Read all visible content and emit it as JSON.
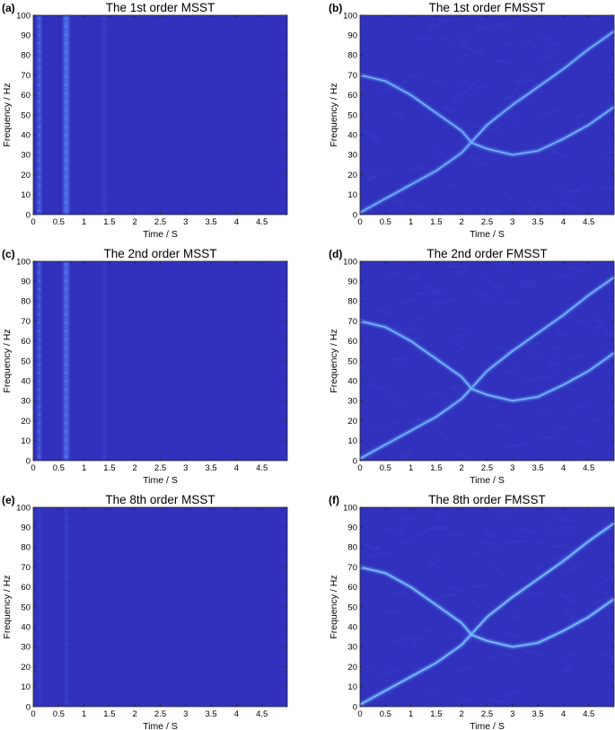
{
  "chart_data": [
    {
      "panel_label": "(a)",
      "title": "The 1st order MSST",
      "type": "heatmap",
      "xlabel": "Time / S",
      "ylabel": "Frequency / Hz",
      "xlim": [
        0,
        5
      ],
      "ylim": [
        0,
        100
      ],
      "xticks": [
        "0",
        "0.5",
        "1",
        "1.5",
        "2",
        "2.5",
        "3",
        "3.5",
        "4",
        "4.5"
      ],
      "yticks": [
        "0",
        "10",
        "20",
        "30",
        "40",
        "50",
        "60",
        "70",
        "80",
        "90",
        "100"
      ],
      "method": "MSST",
      "order": 1,
      "background_color": "#3131bd",
      "ridges": [],
      "vertical_bands": [
        {
          "t": 0.12,
          "width": 0.05,
          "strength": 0.75
        },
        {
          "t": 0.65,
          "width": 0.08,
          "strength": 0.9
        },
        {
          "t": 1.4,
          "width": 0.04,
          "strength": 0.25
        }
      ]
    },
    {
      "panel_label": "(b)",
      "title": "The 1st order FMSST",
      "type": "heatmap",
      "xlabel": "Time / S",
      "ylabel": "Frequency / Hz",
      "xlim": [
        0,
        5
      ],
      "ylim": [
        0,
        100
      ],
      "xticks": [
        "0",
        "0.5",
        "1",
        "1.5",
        "2",
        "2.5",
        "3",
        "3.5",
        "4",
        "4.5"
      ],
      "yticks": [
        "0",
        "10",
        "20",
        "30",
        "40",
        "50",
        "60",
        "70",
        "80",
        "90",
        "100"
      ],
      "method": "FMSST",
      "order": 1,
      "background_color": "#3131bd",
      "ridges": [
        {
          "t": [
            0,
            0.5,
            1,
            1.5,
            2,
            2.5,
            3,
            3.5,
            4,
            4.5,
            5
          ],
          "f": [
            1,
            8,
            15,
            22,
            31,
            45,
            55,
            64,
            73,
            83,
            92
          ],
          "strength": 0.8
        },
        {
          "t": [
            0,
            0.5,
            1,
            1.5,
            2,
            2.2,
            2.5,
            3,
            3.5,
            4,
            4.5,
            5
          ],
          "f": [
            70,
            67,
            60,
            51,
            42,
            36,
            33,
            30,
            32,
            38,
            45,
            54
          ],
          "strength": 0.8
        }
      ],
      "vertical_bands": []
    },
    {
      "panel_label": "(c)",
      "title": "The 2nd order MSST",
      "type": "heatmap",
      "xlabel": "Time / S",
      "ylabel": "Frequency / Hz",
      "xlim": [
        0,
        5
      ],
      "ylim": [
        0,
        100
      ],
      "xticks": [
        "0",
        "0.5",
        "1",
        "1.5",
        "2",
        "2.5",
        "3",
        "3.5",
        "4",
        "4.5"
      ],
      "yticks": [
        "0",
        "10",
        "20",
        "30",
        "40",
        "50",
        "60",
        "70",
        "80",
        "90",
        "100"
      ],
      "method": "MSST",
      "order": 2,
      "background_color": "#3131bd",
      "ridges": [],
      "vertical_bands": [
        {
          "t": 0.12,
          "width": 0.045,
          "strength": 0.7
        },
        {
          "t": 0.65,
          "width": 0.07,
          "strength": 0.85
        },
        {
          "t": 1.4,
          "width": 0.035,
          "strength": 0.22
        }
      ]
    },
    {
      "panel_label": "(d)",
      "title": "The 2nd order FMSST",
      "type": "heatmap",
      "xlabel": "Time / S",
      "ylabel": "Frequency / Hz",
      "xlim": [
        0,
        5
      ],
      "ylim": [
        0,
        100
      ],
      "xticks": [
        "0",
        "0.5",
        "1",
        "1.5",
        "2",
        "2.5",
        "3",
        "3.5",
        "4",
        "4.5"
      ],
      "yticks": [
        "0",
        "10",
        "20",
        "30",
        "40",
        "50",
        "60",
        "70",
        "80",
        "90",
        "100"
      ],
      "method": "FMSST",
      "order": 2,
      "background_color": "#3131bd",
      "ridges": [
        {
          "t": [
            0,
            0.5,
            1,
            1.5,
            2,
            2.5,
            3,
            3.5,
            4,
            4.5,
            5
          ],
          "f": [
            1,
            8,
            15,
            22,
            31,
            45,
            55,
            64,
            73,
            83,
            92
          ],
          "strength": 0.85
        },
        {
          "t": [
            0,
            0.5,
            1,
            1.5,
            2,
            2.2,
            2.5,
            3,
            3.5,
            4,
            4.5,
            5
          ],
          "f": [
            70,
            67,
            60,
            51,
            42,
            36,
            33,
            30,
            32,
            38,
            45,
            54
          ],
          "strength": 0.85
        }
      ],
      "vertical_bands": []
    },
    {
      "panel_label": "(e)",
      "title": "The 8th order MSST",
      "type": "heatmap",
      "xlabel": "Time / S",
      "ylabel": "Frequency / Hz",
      "xlim": [
        0,
        5
      ],
      "ylim": [
        0,
        100
      ],
      "xticks": [
        "0",
        "0.5",
        "1",
        "1.5",
        "2",
        "2.5",
        "3",
        "3.5",
        "4",
        "4.5"
      ],
      "yticks": [
        "0",
        "10",
        "20",
        "30",
        "40",
        "50",
        "60",
        "70",
        "80",
        "90",
        "100"
      ],
      "method": "MSST",
      "order": 8,
      "background_color": "#3131bd",
      "ridges": [],
      "vertical_bands": [
        {
          "t": 0.12,
          "width": 0.03,
          "strength": 0.18
        },
        {
          "t": 0.65,
          "width": 0.04,
          "strength": 0.25
        }
      ]
    },
    {
      "panel_label": "(f)",
      "title": "The 8th order FMSST",
      "type": "heatmap",
      "xlabel": "Time / S",
      "ylabel": "Frequency / Hz",
      "xlim": [
        0,
        5
      ],
      "ylim": [
        0,
        100
      ],
      "xticks": [
        "0",
        "0.5",
        "1",
        "1.5",
        "2",
        "2.5",
        "3",
        "3.5",
        "4",
        "4.5"
      ],
      "yticks": [
        "0",
        "10",
        "20",
        "30",
        "40",
        "50",
        "60",
        "70",
        "80",
        "90",
        "100"
      ],
      "method": "FMSST",
      "order": 8,
      "background_color": "#3131bd",
      "ridges": [
        {
          "t": [
            0,
            0.5,
            1,
            1.5,
            2,
            2.5,
            3,
            3.5,
            4,
            4.5,
            5
          ],
          "f": [
            1,
            8,
            15,
            22,
            31,
            45,
            55,
            64,
            73,
            83,
            92
          ],
          "strength": 0.95
        },
        {
          "t": [
            0,
            0.5,
            1,
            1.5,
            2,
            2.2,
            2.5,
            3,
            3.5,
            4,
            4.5,
            5
          ],
          "f": [
            70,
            67,
            60,
            51,
            42,
            36,
            33,
            30,
            32,
            38,
            45,
            54
          ],
          "strength": 0.95
        }
      ],
      "vertical_bands": []
    }
  ]
}
